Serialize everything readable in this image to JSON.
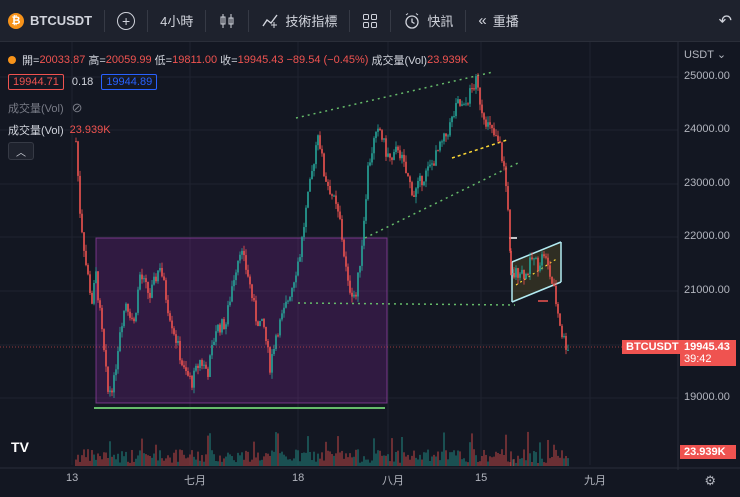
{
  "toolbar": {
    "symbol": "BTCUSDT",
    "interval": "4小時",
    "indicators_label": "技術指標",
    "alert_label": "快訊",
    "replay_label": "重播"
  },
  "legend": {
    "open_label": "開=",
    "open": "20033.87",
    "high_label": "高=",
    "high": "20059.99",
    "low_label": "低=",
    "low": "19811.00",
    "close_label": "收=",
    "close": "19945.43",
    "change": "−89.54 (−0.45%)",
    "volume_label": "成交量(Vol)",
    "volume": "23.939K",
    "bid": "19944.71",
    "spread": "0.18",
    "ask": "19944.89",
    "volume_hidden_label": "成交量(Vol)",
    "volume_row_label": "成交量(Vol)",
    "volume_row_value": "23.939K"
  },
  "price_axis": {
    "currency": "USDT",
    "ticks": [
      "25000.00",
      "24000.00",
      "23000.00",
      "22000.00",
      "21000.00",
      "20000.00",
      "19000.00"
    ],
    "symbol_tag": "BTCUSDT",
    "last_price": "19945.43",
    "countdown": "39:42",
    "volume_tag": "23.939K"
  },
  "time_axis": {
    "ticks": [
      "13",
      "七月",
      "18",
      "八月",
      "15",
      "九月"
    ]
  },
  "colors": {
    "up": "#26a69a",
    "down": "#ef5350",
    "background": "#131722",
    "zone": "#9c27b0"
  }
}
